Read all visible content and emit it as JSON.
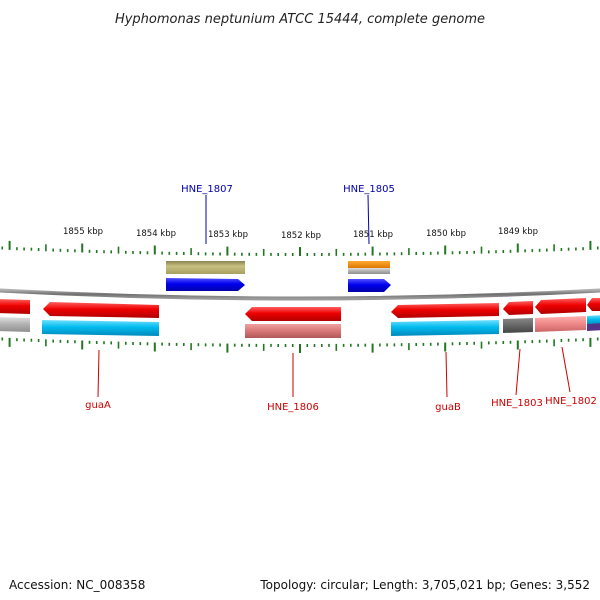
{
  "title": "Hyphomonas neptunium ATCC 15444, complete genome",
  "footer": {
    "accession": "Accession: NC_008358",
    "summary": "Topology: circular; Length: 3,705,021 bp; Genes: 3,552"
  },
  "axis": {
    "ticks": [
      {
        "label": "1855 kbp",
        "kbp": 1855
      },
      {
        "label": "1854 kbp",
        "kbp": 1854
      },
      {
        "label": "1853 kbp",
        "kbp": 1853
      },
      {
        "label": "1852 kbp",
        "kbp": 1852
      },
      {
        "label": "1851 kbp",
        "kbp": 1851
      },
      {
        "label": "1850 kbp",
        "kbp": 1850
      },
      {
        "label": "1849 kbp",
        "kbp": 1849
      }
    ]
  },
  "colors": {
    "forward_gene": "#0000ee",
    "reverse_gene": "#ee0000",
    "cds": "#00bbee",
    "rna": "#ee8800",
    "olive": "#b8b070",
    "grey": "#aaaaaa",
    "dark_grey": "#666666",
    "pink": "#ee8888",
    "tick": "#227722",
    "backbone": "#888888"
  },
  "labels": [
    {
      "name": "HNE_1807",
      "strand": "forward",
      "color": "#0000aa"
    },
    {
      "name": "HNE_1805",
      "strand": "forward",
      "color": "#0000aa"
    },
    {
      "name": "guaA",
      "strand": "reverse",
      "color": "#cc0000"
    },
    {
      "name": "HNE_1806",
      "strand": "reverse",
      "color": "#cc0000"
    },
    {
      "name": "guaB",
      "strand": "reverse",
      "color": "#cc0000"
    },
    {
      "name": "HNE_1803",
      "strand": "reverse",
      "color": "#cc0000"
    },
    {
      "name": "HNE_1802",
      "strand": "reverse",
      "color": "#cc0000"
    }
  ]
}
